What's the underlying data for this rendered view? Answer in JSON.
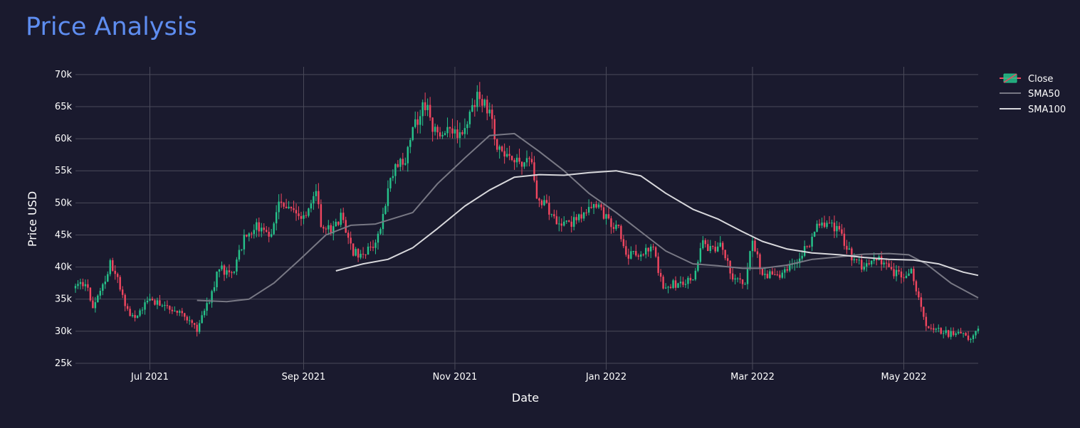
{
  "chart_data": {
    "type": "candlestick",
    "title": "Price Analysis",
    "xlabel": "Date",
    "ylabel": "Price USD",
    "x_range": [
      "2021-06-01",
      "2022-05-31"
    ],
    "ylim": [
      24000,
      71200
    ],
    "y_ticks": [
      25000,
      30000,
      35000,
      40000,
      45000,
      50000,
      55000,
      60000,
      65000,
      70000
    ],
    "y_tick_labels": [
      "25k",
      "30k",
      "35k",
      "40k",
      "45k",
      "50k",
      "55k",
      "60k",
      "65k",
      "70k"
    ],
    "x_ticks": [
      "2021-07-01",
      "2021-09-01",
      "2021-11-01",
      "2022-01-01",
      "2022-03-01",
      "2022-05-01"
    ],
    "x_tick_labels": [
      "Jul 2021",
      "Sep 2021",
      "Nov 2021",
      "Jan 2022",
      "Mar 2022",
      "May 2022"
    ],
    "grid": true,
    "legend": [
      "Close",
      "SMA50",
      "SMA100"
    ],
    "legend_position": "top-right",
    "close_keypoints": [
      [
        "2021-06-01",
        36500
      ],
      [
        "2021-06-05",
        37800
      ],
      [
        "2021-06-08",
        33500
      ],
      [
        "2021-06-12",
        37000
      ],
      [
        "2021-06-15",
        40500
      ],
      [
        "2021-06-18",
        38000
      ],
      [
        "2021-06-22",
        33000
      ],
      [
        "2021-06-26",
        32500
      ],
      [
        "2021-06-30",
        35000
      ],
      [
        "2021-07-05",
        34500
      ],
      [
        "2021-07-10",
        33700
      ],
      [
        "2021-07-15",
        32500
      ],
      [
        "2021-07-20",
        30000
      ],
      [
        "2021-07-25",
        35000
      ],
      [
        "2021-07-29",
        40000
      ],
      [
        "2021-08-03",
        38500
      ],
      [
        "2021-08-08",
        44500
      ],
      [
        "2021-08-13",
        46500
      ],
      [
        "2021-08-18",
        44500
      ],
      [
        "2021-08-22",
        49500
      ],
      [
        "2021-08-27",
        48500
      ],
      [
        "2021-09-01",
        48000
      ],
      [
        "2021-09-06",
        52000
      ],
      [
        "2021-09-08",
        46500
      ],
      [
        "2021-09-12",
        45500
      ],
      [
        "2021-09-16",
        47800
      ],
      [
        "2021-09-21",
        42500
      ],
      [
        "2021-09-24",
        42000
      ],
      [
        "2021-09-30",
        43800
      ],
      [
        "2021-10-03",
        48000
      ],
      [
        "2021-10-07",
        55000
      ],
      [
        "2021-10-12",
        57000
      ],
      [
        "2021-10-16",
        62000
      ],
      [
        "2021-10-20",
        65500
      ],
      [
        "2021-10-24",
        61000
      ],
      [
        "2021-10-28",
        61500
      ],
      [
        "2021-11-03",
        61000
      ],
      [
        "2021-11-07",
        63500
      ],
      [
        "2021-11-10",
        66500
      ],
      [
        "2021-11-15",
        64500
      ],
      [
        "2021-11-18",
        58500
      ],
      [
        "2021-11-24",
        57000
      ],
      [
        "2021-11-28",
        56500
      ],
      [
        "2021-12-02",
        57000
      ],
      [
        "2021-12-04",
        50000
      ],
      [
        "2021-12-08",
        49500
      ],
      [
        "2021-12-13",
        47000
      ],
      [
        "2021-12-20",
        47000
      ],
      [
        "2021-12-27",
        50500
      ],
      [
        "2022-01-01",
        47500
      ],
      [
        "2022-01-06",
        46000
      ],
      [
        "2022-01-09",
        41500
      ],
      [
        "2022-01-15",
        42500
      ],
      [
        "2022-01-20",
        42500
      ],
      [
        "2022-01-24",
        37000
      ],
      [
        "2022-01-30",
        37500
      ],
      [
        "2022-02-05",
        38500
      ],
      [
        "2022-02-09",
        43500
      ],
      [
        "2022-02-13",
        42500
      ],
      [
        "2022-02-16",
        44000
      ],
      [
        "2022-02-21",
        38500
      ],
      [
        "2022-02-26",
        37500
      ],
      [
        "2022-03-01",
        44000
      ],
      [
        "2022-03-05",
        39000
      ],
      [
        "2022-03-10",
        38500
      ],
      [
        "2022-03-15",
        39500
      ],
      [
        "2022-03-20",
        41500
      ],
      [
        "2022-03-25",
        44500
      ],
      [
        "2022-03-28",
        47000
      ],
      [
        "2022-04-02",
        46500
      ],
      [
        "2022-04-05",
        45500
      ],
      [
        "2022-04-10",
        41500
      ],
      [
        "2022-04-15",
        40000
      ],
      [
        "2022-04-20",
        41500
      ],
      [
        "2022-04-25",
        39500
      ],
      [
        "2022-04-30",
        38500
      ],
      [
        "2022-05-04",
        39500
      ],
      [
        "2022-05-07",
        35500
      ],
      [
        "2022-05-10",
        30500
      ],
      [
        "2022-05-15",
        30000
      ],
      [
        "2022-05-20",
        29500
      ],
      [
        "2022-05-25",
        29300
      ],
      [
        "2022-05-28",
        28800
      ],
      [
        "2022-05-31",
        30600
      ]
    ],
    "series": [
      {
        "name": "SMA50",
        "color": "#787884",
        "points": [
          [
            "2021-07-20",
            34800
          ],
          [
            "2021-08-01",
            34600
          ],
          [
            "2021-08-10",
            35000
          ],
          [
            "2021-08-20",
            37500
          ],
          [
            "2021-08-30",
            41000
          ],
          [
            "2021-09-10",
            45000
          ],
          [
            "2021-09-20",
            46500
          ],
          [
            "2021-09-30",
            46700
          ],
          [
            "2021-10-15",
            48500
          ],
          [
            "2021-10-25",
            53000
          ],
          [
            "2021-11-05",
            57000
          ],
          [
            "2021-11-15",
            60500
          ],
          [
            "2021-11-25",
            60800
          ],
          [
            "2021-12-05",
            58000
          ],
          [
            "2021-12-15",
            55000
          ],
          [
            "2021-12-25",
            51500
          ],
          [
            "2022-01-05",
            48500
          ],
          [
            "2022-01-15",
            45500
          ],
          [
            "2022-01-25",
            42500
          ],
          [
            "2022-02-05",
            40500
          ],
          [
            "2022-02-15",
            40200
          ],
          [
            "2022-02-25",
            39800
          ],
          [
            "2022-03-05",
            39800
          ],
          [
            "2022-03-15",
            40300
          ],
          [
            "2022-03-25",
            41200
          ],
          [
            "2022-04-05",
            41600
          ],
          [
            "2022-04-15",
            42000
          ],
          [
            "2022-04-25",
            42100
          ],
          [
            "2022-05-03",
            41900
          ],
          [
            "2022-05-10",
            40500
          ],
          [
            "2022-05-20",
            37500
          ],
          [
            "2022-05-31",
            35200
          ]
        ]
      },
      {
        "name": "SMA100",
        "color": "#d8d8dc",
        "points": [
          [
            "2021-09-14",
            39400
          ],
          [
            "2021-09-25",
            40500
          ],
          [
            "2021-10-05",
            41200
          ],
          [
            "2021-10-15",
            43000
          ],
          [
            "2021-10-25",
            46000
          ],
          [
            "2021-11-05",
            49500
          ],
          [
            "2021-11-15",
            52000
          ],
          [
            "2021-11-25",
            54000
          ],
          [
            "2021-12-05",
            54400
          ],
          [
            "2021-12-15",
            54300
          ],
          [
            "2021-12-25",
            54700
          ],
          [
            "2022-01-05",
            55000
          ],
          [
            "2022-01-15",
            54200
          ],
          [
            "2022-01-25",
            51500
          ],
          [
            "2022-02-05",
            49000
          ],
          [
            "2022-02-15",
            47500
          ],
          [
            "2022-02-25",
            45500
          ],
          [
            "2022-03-05",
            44000
          ],
          [
            "2022-03-15",
            42800
          ],
          [
            "2022-03-25",
            42200
          ],
          [
            "2022-04-05",
            41900
          ],
          [
            "2022-04-15",
            41500
          ],
          [
            "2022-04-25",
            41200
          ],
          [
            "2022-05-05",
            41100
          ],
          [
            "2022-05-15",
            40500
          ],
          [
            "2022-05-25",
            39200
          ],
          [
            "2022-05-31",
            38700
          ]
        ]
      }
    ],
    "colors": {
      "up": "#26c28a",
      "down": "#f0465f",
      "grid": "#4a4a5a",
      "background": "#1a1a2e",
      "title": "#5e8df0"
    }
  }
}
